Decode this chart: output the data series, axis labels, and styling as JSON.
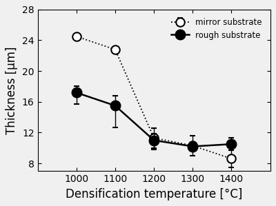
{
  "temperatures": [
    1000,
    1100,
    1200,
    1300,
    1400
  ],
  "mirror_y": [
    24.5,
    22.8,
    11.3,
    10.3,
    8.6
  ],
  "mirror_yerr_lo": [
    0.0,
    0.0,
    1.3,
    1.3,
    1.1
  ],
  "mirror_yerr_hi": [
    0.0,
    0.0,
    1.3,
    1.3,
    1.1
  ],
  "rough_y": [
    17.2,
    15.5,
    11.0,
    10.2,
    10.5
  ],
  "rough_yerr_lo": [
    1.5,
    2.8,
    1.2,
    0.5,
    0.8
  ],
  "rough_yerr_hi": [
    0.8,
    1.3,
    0.9,
    0.5,
    0.8
  ],
  "xlabel": "Densification temperature [°C]",
  "ylabel": "Thickness [µm]",
  "legend_mirror": "mirror substrate",
  "legend_rough": "rough substrate",
  "xlim": [
    900,
    1500
  ],
  "ylim": [
    7,
    28
  ],
  "yticks": [
    8,
    12,
    16,
    20,
    24,
    28
  ],
  "xticks": [
    1000,
    1100,
    1200,
    1300,
    1400
  ],
  "bg_color": "#f0f0f0",
  "line_color": "#000000"
}
